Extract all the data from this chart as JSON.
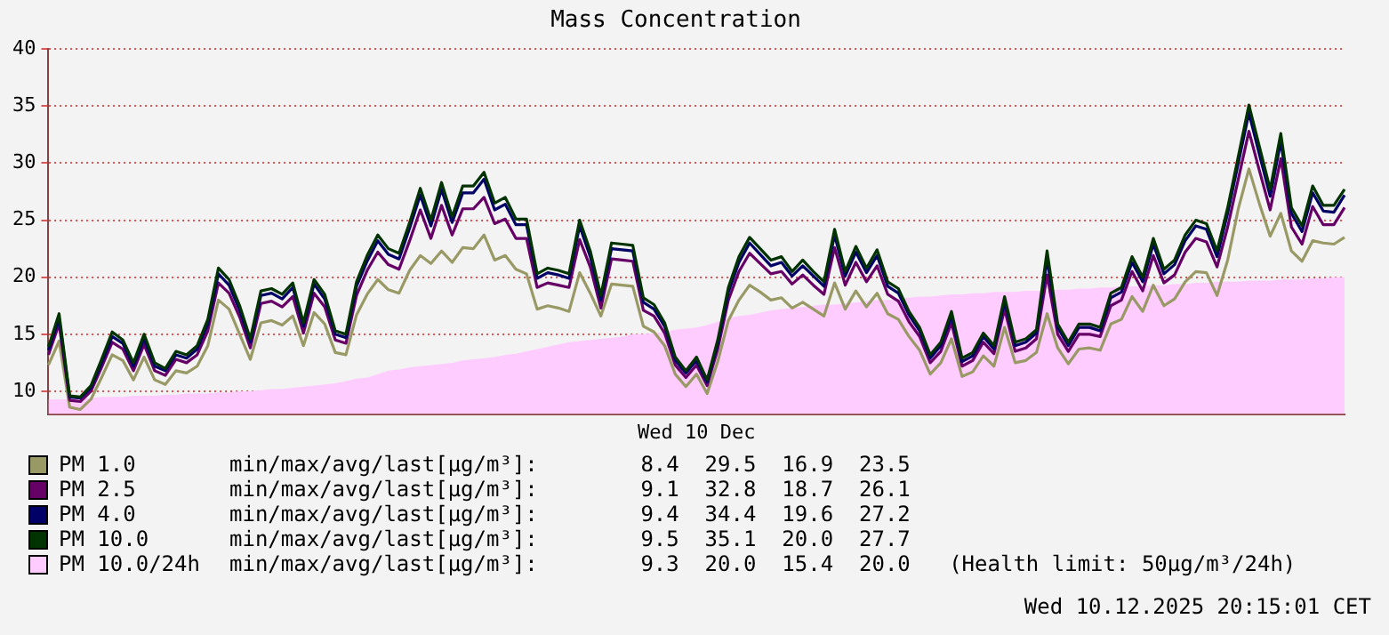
{
  "chart_data": {
    "type": "line",
    "title": "Mass Concentration",
    "xlabel": "Wed 10 Dec",
    "categories": [
      null,
      null,
      null,
      null,
      null,
      null,
      null,
      null,
      null,
      null,
      null,
      null,
      null,
      null,
      null,
      null,
      null,
      null,
      null,
      null,
      null,
      null,
      null,
      null,
      null,
      null,
      null,
      null,
      null,
      null,
      null,
      null,
      null,
      null,
      null,
      null,
      null,
      null,
      null,
      null,
      null,
      null,
      null,
      null,
      null,
      null,
      null,
      null,
      null,
      null,
      null,
      null,
      null,
      null,
      null,
      null,
      null,
      null,
      null,
      null,
      null,
      null,
      null,
      null,
      null,
      null,
      null,
      null,
      null,
      null,
      null,
      null,
      null,
      null,
      null,
      null,
      null,
      null,
      null,
      null,
      null,
      null,
      null,
      null,
      null,
      null,
      null,
      null,
      null,
      null,
      null,
      null,
      null,
      null,
      null,
      null,
      null,
      null,
      null,
      null,
      null,
      null,
      null,
      null,
      null,
      null,
      null,
      null,
      null,
      null,
      null,
      null,
      null,
      null,
      null,
      null,
      null,
      null,
      null,
      null,
      null,
      null,
      null
    ],
    "series": [
      {
        "name": "PM 1.0",
        "color": "#999966",
        "values": [
          12.3,
          14.4,
          8.6,
          8.4,
          9.3,
          11.2,
          13.2,
          12.7,
          11.0,
          13.0,
          11.0,
          10.6,
          11.8,
          11.6,
          12.2,
          14.0,
          18.0,
          17.2,
          15.0,
          12.8,
          16.0,
          16.2,
          15.8,
          16.6,
          14.0,
          16.9,
          15.9,
          13.4,
          13.2,
          16.7,
          18.5,
          19.8,
          18.9,
          18.6,
          20.6,
          21.9,
          21.2,
          22.3,
          21.3,
          22.6,
          22.5,
          23.7,
          21.5,
          21.9,
          20.7,
          20.3,
          17.2,
          17.5,
          17.3,
          17.0,
          20.4,
          18.6,
          16.6,
          19.4,
          19.3,
          19.2,
          15.7,
          15.2,
          14.0,
          11.5,
          10.4,
          11.5,
          9.8,
          12.6,
          16.2,
          18.0,
          19.3,
          18.7,
          18.0,
          18.2,
          17.3,
          17.8,
          17.2,
          16.6,
          19.5,
          17.2,
          18.8,
          17.4,
          18.6,
          16.8,
          16.3,
          14.8,
          13.6,
          11.5,
          12.5,
          14.6,
          11.3,
          11.7,
          13.1,
          12.2,
          15.6,
          12.5,
          12.7,
          13.4,
          16.8,
          13.8,
          12.4,
          13.7,
          13.8,
          13.6,
          15.9,
          16.3,
          18.3,
          17.0,
          19.3,
          17.5,
          18.1,
          19.6,
          20.5,
          20.4,
          18.4,
          21.5,
          26.0,
          29.5,
          26.4,
          23.6,
          25.6,
          22.3,
          21.4,
          23.2,
          23.0,
          22.9,
          23.5
        ]
      },
      {
        "name": "PM 2.5",
        "color": "#660066",
        "values": [
          13.2,
          15.9,
          9.2,
          9.1,
          10.0,
          12.1,
          14.3,
          13.7,
          11.8,
          14.1,
          11.8,
          11.4,
          12.8,
          12.5,
          13.2,
          15.3,
          19.5,
          18.6,
          16.5,
          13.8,
          17.7,
          17.9,
          17.4,
          18.3,
          15.1,
          18.6,
          17.4,
          14.5,
          14.2,
          18.4,
          20.6,
          22.2,
          21.1,
          20.7,
          23.2,
          25.9,
          23.4,
          26.3,
          23.7,
          26.0,
          26.0,
          27.0,
          24.7,
          25.1,
          23.4,
          23.4,
          19.1,
          19.5,
          19.3,
          19.1,
          23.3,
          20.9,
          17.3,
          21.6,
          21.5,
          21.4,
          17.1,
          16.6,
          15.1,
          12.3,
          11.2,
          12.3,
          10.5,
          13.7,
          18.0,
          20.5,
          22.1,
          21.2,
          20.3,
          20.5,
          19.4,
          20.2,
          19.3,
          18.5,
          22.6,
          19.3,
          21.3,
          19.6,
          21.0,
          18.5,
          17.9,
          16.1,
          14.8,
          12.5,
          13.5,
          16.0,
          12.2,
          12.7,
          14.3,
          13.3,
          17.2,
          13.5,
          13.8,
          14.6,
          20.2,
          15.0,
          13.5,
          15.0,
          15.0,
          14.8,
          17.5,
          18.0,
          20.5,
          18.8,
          21.9,
          19.5,
          20.2,
          22.2,
          23.4,
          23.1,
          20.9,
          24.4,
          28.6,
          32.8,
          29.3,
          25.9,
          30.4,
          24.4,
          22.9,
          26.2,
          24.6,
          24.6,
          26.1
        ]
      },
      {
        "name": "PM 4.0",
        "color": "#000066",
        "values": [
          13.6,
          16.4,
          9.5,
          9.4,
          10.3,
          12.5,
          14.8,
          14.2,
          12.2,
          14.6,
          12.2,
          11.8,
          13.2,
          12.9,
          13.7,
          15.9,
          20.3,
          19.3,
          17.1,
          14.3,
          18.4,
          18.6,
          18.1,
          19.1,
          15.7,
          19.4,
          18.1,
          15.0,
          14.7,
          19.2,
          21.4,
          23.2,
          22.0,
          21.6,
          24.3,
          27.2,
          24.5,
          27.7,
          24.8,
          27.4,
          27.4,
          28.6,
          25.9,
          26.4,
          24.6,
          24.6,
          19.9,
          20.4,
          20.2,
          19.9,
          24.5,
          21.8,
          18.0,
          22.5,
          22.4,
          22.3,
          17.8,
          17.2,
          15.7,
          12.7,
          11.6,
          12.7,
          10.8,
          14.2,
          18.7,
          21.3,
          23.0,
          22.0,
          21.0,
          21.3,
          20.1,
          21.0,
          20.1,
          19.2,
          23.7,
          20.1,
          22.2,
          20.4,
          21.9,
          19.2,
          18.6,
          16.7,
          15.3,
          12.9,
          14.0,
          16.6,
          12.6,
          13.1,
          14.8,
          13.7,
          17.9,
          14.0,
          14.3,
          15.1,
          21.6,
          15.6,
          14.0,
          15.6,
          15.6,
          15.3,
          18.2,
          18.7,
          21.3,
          19.6,
          22.9,
          20.3,
          21.1,
          23.2,
          24.5,
          24.2,
          21.8,
          25.6,
          30.0,
          34.4,
          30.7,
          27.1,
          31.9,
          25.6,
          24.0,
          27.4,
          25.8,
          25.7,
          27.2
        ]
      },
      {
        "name": "PM 10.0",
        "color": "#003300",
        "values": [
          13.9,
          16.8,
          9.6,
          9.5,
          10.5,
          12.8,
          15.2,
          14.5,
          12.5,
          15.0,
          12.5,
          12.0,
          13.5,
          13.2,
          14.0,
          16.3,
          20.8,
          19.8,
          17.5,
          14.6,
          18.8,
          19.0,
          18.5,
          19.5,
          16.0,
          19.8,
          18.5,
          15.3,
          15.0,
          19.6,
          21.9,
          23.7,
          22.5,
          22.1,
          24.8,
          27.8,
          25.0,
          28.3,
          25.3,
          28.0,
          28.0,
          29.2,
          26.5,
          27.0,
          25.1,
          25.1,
          20.3,
          20.8,
          20.6,
          20.3,
          25.0,
          22.3,
          18.4,
          23.0,
          22.9,
          22.8,
          18.2,
          17.6,
          16.0,
          13.0,
          11.8,
          13.0,
          11.0,
          14.5,
          19.1,
          21.8,
          23.5,
          22.5,
          21.5,
          21.8,
          20.5,
          21.5,
          20.5,
          19.6,
          24.2,
          20.5,
          22.7,
          20.8,
          22.4,
          19.6,
          19.0,
          17.0,
          15.6,
          13.2,
          14.3,
          17.0,
          12.9,
          13.4,
          15.1,
          14.0,
          18.3,
          14.3,
          14.6,
          15.4,
          22.3,
          15.9,
          14.3,
          15.9,
          15.9,
          15.6,
          18.6,
          19.1,
          21.8,
          20.0,
          23.4,
          20.7,
          21.5,
          23.7,
          25.0,
          24.7,
          22.3,
          26.1,
          30.6,
          35.1,
          31.4,
          27.7,
          32.6,
          26.1,
          24.5,
          28.0,
          26.3,
          26.3,
          27.7
        ]
      },
      {
        "name": "PM 10.0/24h",
        "type": "area",
        "color": "#ffccff",
        "values": [
          9.3,
          9.3,
          9.3,
          9.4,
          9.4,
          9.5,
          9.5,
          9.5,
          9.6,
          9.6,
          9.6,
          9.7,
          9.7,
          9.8,
          9.8,
          9.8,
          9.9,
          9.9,
          10.0,
          10.0,
          10.1,
          10.2,
          10.2,
          10.3,
          10.4,
          10.5,
          10.6,
          10.7,
          10.9,
          11.1,
          11.2,
          11.5,
          11.8,
          11.9,
          12.1,
          12.2,
          12.3,
          12.4,
          12.5,
          12.7,
          12.8,
          12.9,
          13.0,
          13.2,
          13.3,
          13.5,
          13.7,
          13.9,
          14.1,
          14.3,
          14.4,
          14.5,
          14.6,
          14.7,
          14.8,
          15.0,
          15.0,
          15.1,
          15.2,
          15.4,
          15.5,
          15.6,
          15.8,
          16.1,
          16.4,
          16.6,
          16.7,
          16.9,
          17.1,
          17.2,
          17.3,
          17.4,
          17.5,
          17.6,
          17.6,
          17.7,
          17.8,
          17.9,
          18.0,
          18.0,
          18.1,
          18.2,
          18.3,
          18.3,
          18.4,
          18.5,
          18.5,
          18.6,
          18.6,
          18.7,
          18.7,
          18.7,
          18.8,
          18.8,
          18.8,
          18.9,
          18.9,
          19.0,
          19.0,
          19.1,
          19.1,
          19.2,
          19.2,
          19.2,
          19.3,
          19.3,
          19.4,
          19.4,
          19.5,
          19.5,
          19.6,
          19.6,
          19.6,
          19.7,
          19.7,
          19.7,
          19.8,
          19.8,
          19.8,
          19.9,
          19.9,
          20.0,
          20.0
        ]
      }
    ],
    "ylim": [
      8,
      40
    ],
    "yticks": [
      10,
      15,
      20,
      25,
      30,
      35,
      40
    ],
    "tick_labels": "y",
    "grid": "y",
    "legend": "bottom",
    "marker": "none",
    "line_style": "solid",
    "annotations": [
      "min/max/avg/last[µg/m³]:        8.4  29.5  16.9  23.5",
      "min/max/avg/last[µg/m³]:        9.1  32.8  18.7  26.1",
      "min/max/avg/last[µg/m³]:        9.4  34.4  19.6  27.2",
      "min/max/avg/last[µg/m³]:        9.5  35.1  20.0  27.7",
      "min/max/avg/last[µg/m³]:        9.3  20.0  15.4  20.0   (Health limit: 50µg/m³/24h)",
      "Wed 10.12.2025 20:15:01 CET"
    ]
  }
}
